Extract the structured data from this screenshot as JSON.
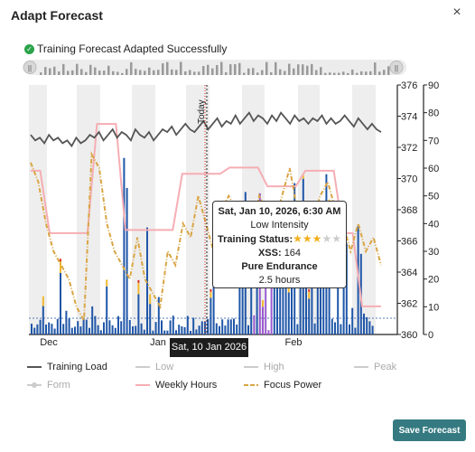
{
  "dialog": {
    "title": "Adapt Forecast",
    "close_label": "×"
  },
  "status": {
    "message": "Training Forecast Adapted Successfully"
  },
  "navigator": {
    "left_handle": "||",
    "right_handle": "||"
  },
  "chart_data": {
    "type": "combo",
    "x_labels": [
      "Dec",
      "Jan",
      "Feb"
    ],
    "today_label": "Today",
    "left_axis": {
      "ticks": [
        360,
        362,
        364,
        366,
        368,
        370,
        372,
        374,
        376
      ],
      "range": [
        360,
        376
      ]
    },
    "right_axis": {
      "ticks": [
        0,
        10,
        20,
        30,
        40,
        50,
        60,
        70,
        80,
        90
      ],
      "range": [
        0,
        90
      ]
    },
    "training_load_right": [
      72,
      70,
      71,
      69,
      72,
      70,
      71,
      69,
      70,
      68,
      71,
      69,
      70,
      72,
      71,
      73,
      70,
      72,
      74,
      71,
      73,
      72,
      70,
      74,
      72,
      71,
      73,
      70,
      72,
      74,
      73,
      75,
      72,
      74,
      76,
      74,
      73,
      75,
      77,
      74,
      76,
      78,
      75,
      77,
      76,
      79,
      76,
      78,
      80,
      77,
      79,
      78,
      76,
      79,
      77,
      80,
      78,
      76,
      79,
      77,
      78,
      76,
      78,
      77,
      79,
      76,
      78,
      76,
      77,
      79,
      77,
      75,
      78,
      76,
      74,
      76,
      74,
      73
    ],
    "weekly_hours_left": [
      370.5,
      370.5,
      366.5,
      366.5,
      366.5,
      366.5,
      366.5,
      373.5,
      373.5,
      373.5,
      366.7,
      366.7,
      366.7,
      366.7,
      366.7,
      366.7,
      370.3,
      370.3,
      370.3,
      370.3,
      370.3,
      370.7,
      370.7,
      370.7,
      370.7,
      369.5,
      369.5,
      369.5,
      369.5,
      370.5,
      370.5,
      370.5,
      370.5,
      366.5,
      366.5,
      361.8,
      361.8,
      361.8
    ],
    "focus_power_right": [
      62,
      55,
      40,
      30,
      25,
      20,
      10,
      5,
      65,
      60,
      40,
      30,
      25,
      20,
      35,
      20,
      15,
      10,
      30,
      25,
      40,
      35,
      50,
      40,
      30,
      45,
      50,
      45,
      40,
      35,
      50,
      45,
      40,
      50,
      60,
      45,
      35,
      40,
      50,
      55,
      45,
      40,
      30,
      40,
      30,
      35,
      25
    ],
    "tooltip": {
      "date": "Sat, Jan 10, 2026, 6:30 AM",
      "intensity": "Low Intensity",
      "status_label": "Training Status:",
      "stars": 3,
      "stars_max": 5,
      "xss_label": "XSS:",
      "xss_value": "164",
      "focus": "Pure Endurance",
      "duration": "2.5 hours"
    },
    "crosshair_date": "Sat, 10 Jan 2026"
  },
  "legend": {
    "training_load": "Training Load",
    "low": "Low",
    "high": "High",
    "peak": "Peak",
    "form": "Form",
    "weekly_hours": "Weekly Hours",
    "focus_power": "Focus Power"
  },
  "colors": {
    "training_load": "#555555",
    "weekly_hours": "#f5aeb4",
    "focus_power": "#d9a544",
    "bar_blue": "#1f56a8",
    "bar_purple": "#9b59d0",
    "accent": "#357a81"
  },
  "actions": {
    "save_label": "Save Forecast"
  }
}
